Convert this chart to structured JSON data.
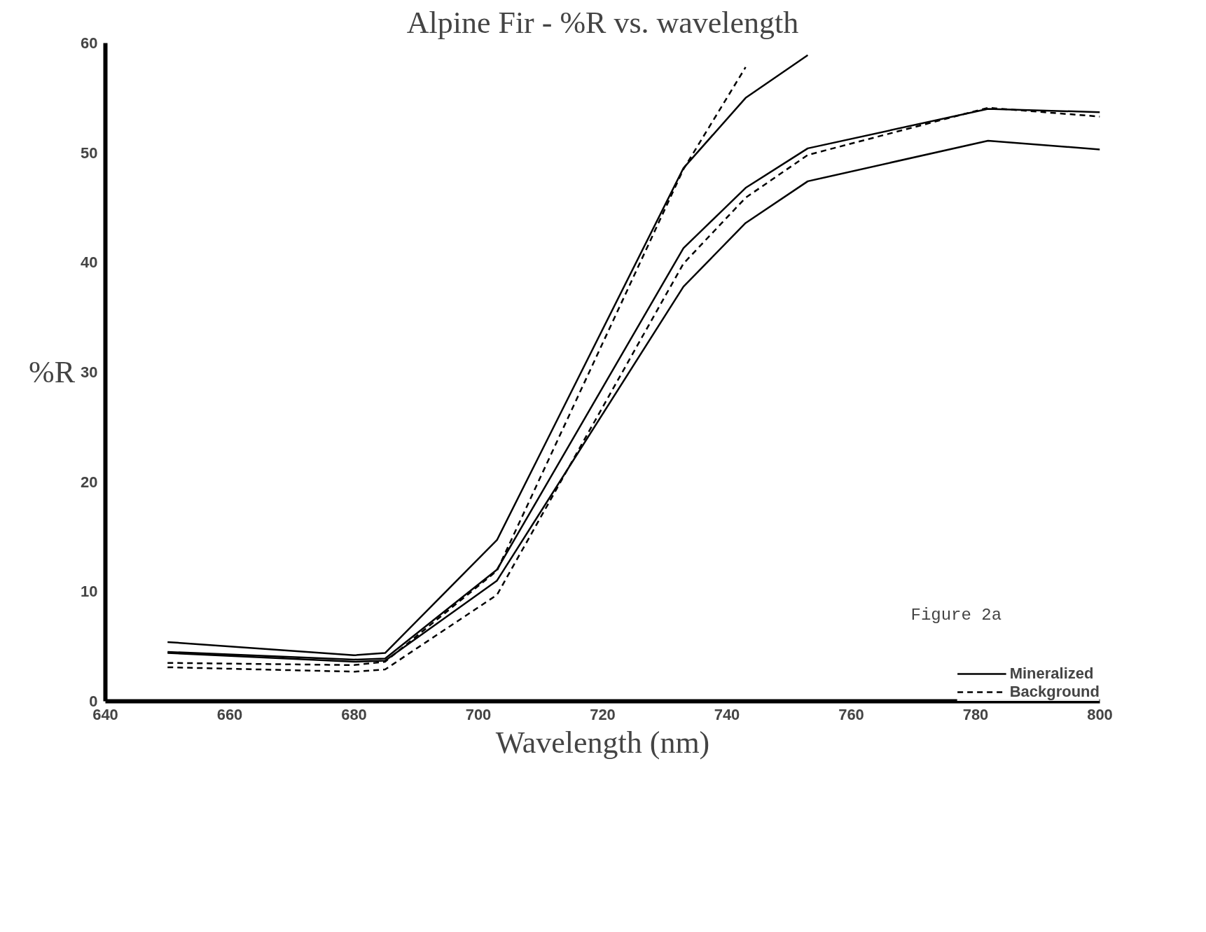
{
  "chart_data": {
    "type": "line",
    "title": "Alpine Fir - %R vs. wavelength",
    "xlabel": "Wavelength (nm)",
    "ylabel": "%R",
    "x": [
      650,
      680,
      685,
      703,
      733,
      743,
      753,
      782,
      800
    ],
    "series": [
      {
        "name": "Mineralized",
        "color": "#000000",
        "line_style": "solid",
        "values": [
          5.4,
          4.2,
          4.4,
          14.7,
          48.6,
          55.0,
          58.9,
          null,
          null
        ]
      },
      {
        "color": "#000000",
        "line_style": "solid",
        "values": [
          4.5,
          3.8,
          3.9,
          12.0,
          41.3,
          46.8,
          50.4,
          54.0,
          53.7
        ]
      },
      {
        "color": "#000000",
        "line_style": "solid",
        "values": [
          4.4,
          3.6,
          3.7,
          11.0,
          37.8,
          43.6,
          47.4,
          51.1,
          50.3
        ]
      },
      {
        "name": "Background",
        "color": "#000000",
        "line_style": "dashed",
        "values": [
          3.5,
          3.3,
          3.6,
          11.9,
          48.5,
          57.8,
          null,
          null,
          null
        ]
      },
      {
        "color": "#000000",
        "line_style": "dashed",
        "values": [
          3.1,
          2.7,
          2.9,
          9.7,
          39.9,
          45.9,
          49.8,
          54.1,
          53.3
        ]
      }
    ],
    "xlim": [
      640,
      800
    ],
    "xticks": [
      640,
      660,
      680,
      700,
      720,
      740,
      760,
      780,
      800
    ],
    "ylim": [
      0,
      60
    ],
    "yticks": [
      0,
      10,
      20,
      30,
      40,
      50,
      60
    ],
    "grid": false,
    "legend": "bottom right",
    "marker": "none",
    "annotations": [
      "Figure 2a"
    ]
  }
}
